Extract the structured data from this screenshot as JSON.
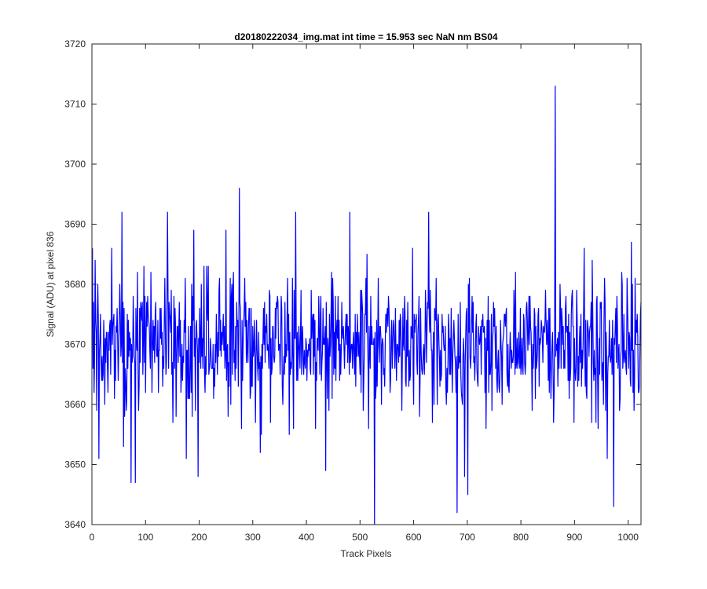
{
  "chart_data": {
    "type": "line",
    "title": "d20180222034_img.mat int time = 15.953 sec  NaN nm BS04",
    "xlabel": "Track Pixels",
    "ylabel": "Signal (ADU) at pixel 836",
    "xlim": [
      0,
      1024
    ],
    "ylim": [
      3640,
      3720
    ],
    "xticks": [
      0,
      100,
      200,
      300,
      400,
      500,
      600,
      700,
      800,
      900,
      1000
    ],
    "yticks": [
      3640,
      3650,
      3660,
      3670,
      3680,
      3690,
      3700,
      3710,
      3720
    ],
    "grid": false,
    "legend": "none",
    "series": [
      {
        "color": "#0000ff",
        "n_points": 1024,
        "baseline": 3670,
        "spread": 5.5,
        "peaks": [
          {
            "x": 5,
            "y": 3684
          },
          {
            "x": 12,
            "y": 3651
          },
          {
            "x": 36,
            "y": 3686
          },
          {
            "x": 55,
            "y": 3692
          },
          {
            "x": 58,
            "y": 3653
          },
          {
            "x": 72,
            "y": 3647
          },
          {
            "x": 80,
            "y": 3647
          },
          {
            "x": 96,
            "y": 3683
          },
          {
            "x": 140,
            "y": 3692
          },
          {
            "x": 175,
            "y": 3651
          },
          {
            "x": 189,
            "y": 3689
          },
          {
            "x": 197,
            "y": 3648
          },
          {
            "x": 249,
            "y": 3689
          },
          {
            "x": 274,
            "y": 3696
          },
          {
            "x": 313,
            "y": 3652
          },
          {
            "x": 379,
            "y": 3692
          },
          {
            "x": 435,
            "y": 3649
          },
          {
            "x": 480,
            "y": 3692
          },
          {
            "x": 526,
            "y": 3640
          },
          {
            "x": 597,
            "y": 3686
          },
          {
            "x": 627,
            "y": 3692
          },
          {
            "x": 680,
            "y": 3642
          },
          {
            "x": 694,
            "y": 3648
          },
          {
            "x": 700,
            "y": 3645
          },
          {
            "x": 863,
            "y": 3713
          },
          {
            "x": 960,
            "y": 3651
          },
          {
            "x": 972,
            "y": 3643
          },
          {
            "x": 1005,
            "y": 3687
          }
        ]
      }
    ]
  }
}
